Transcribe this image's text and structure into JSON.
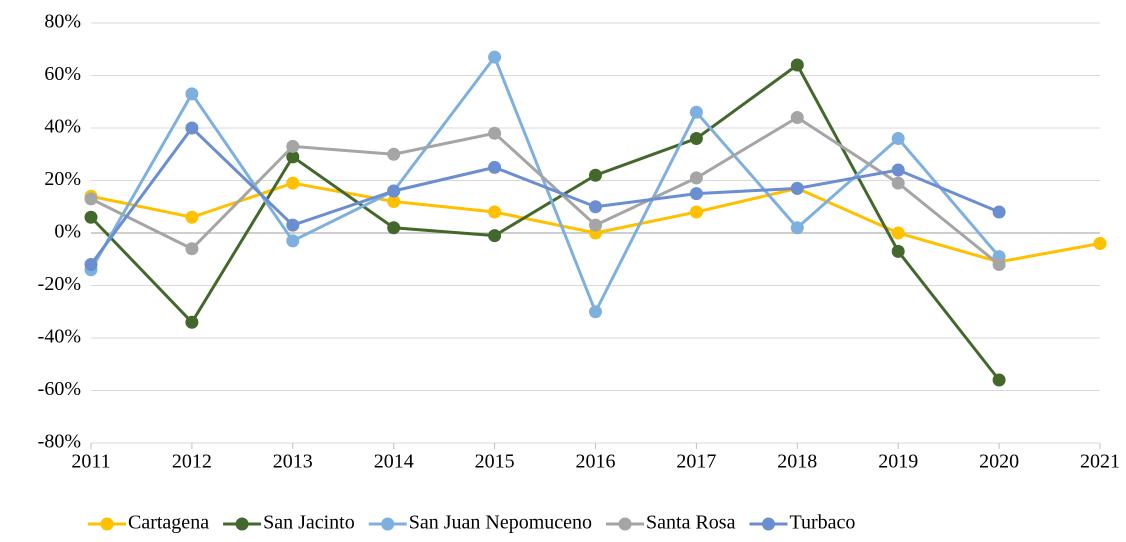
{
  "chart_data": {
    "type": "line",
    "x": [
      2011,
      2012,
      2013,
      2014,
      2015,
      2016,
      2017,
      2018,
      2019,
      2020,
      2021
    ],
    "xlim": [
      2011,
      2021
    ],
    "xticks": [
      2011,
      2012,
      2013,
      2014,
      2015,
      2016,
      2017,
      2018,
      2019,
      2020,
      2021
    ],
    "ylim": [
      -80,
      80
    ],
    "yticks": [
      {
        "value": -80,
        "label": "-80%"
      },
      {
        "value": -60,
        "label": "-60%"
      },
      {
        "value": -40,
        "label": "-40%"
      },
      {
        "value": -20,
        "label": "-20%"
      },
      {
        "value": 0,
        "label": "0%"
      },
      {
        "value": 20,
        "label": "20%"
      },
      {
        "value": 40,
        "label": "40%"
      },
      {
        "value": 60,
        "label": "60%"
      },
      {
        "value": 80,
        "label": "80%"
      }
    ],
    "grid": true,
    "legend": "bottom",
    "series": [
      {
        "name": "Cartagena",
        "color": "#FFC000",
        "values": [
          14,
          6,
          19,
          12,
          8,
          0,
          8,
          17,
          0,
          -11,
          -4
        ]
      },
      {
        "name": "San Jacinto",
        "color": "#43682B",
        "values": [
          6,
          -34,
          29,
          2,
          -1,
          22,
          36,
          64,
          -7,
          -56,
          null
        ]
      },
      {
        "name": "San Juan Nepomuceno",
        "color": "#7EB0DF",
        "values": [
          -14,
          53,
          -3,
          16,
          67,
          -30,
          46,
          2,
          36,
          -9,
          null
        ]
      },
      {
        "name": "Santa Rosa",
        "color": "#A5A5A5",
        "values": [
          13,
          -6,
          33,
          30,
          38,
          3,
          21,
          44,
          19,
          -12,
          null
        ]
      },
      {
        "name": "Turbaco",
        "color": "#6A8ED0",
        "values": [
          -12,
          40,
          3,
          16,
          25,
          10,
          15,
          17,
          24,
          8,
          null
        ]
      }
    ]
  }
}
